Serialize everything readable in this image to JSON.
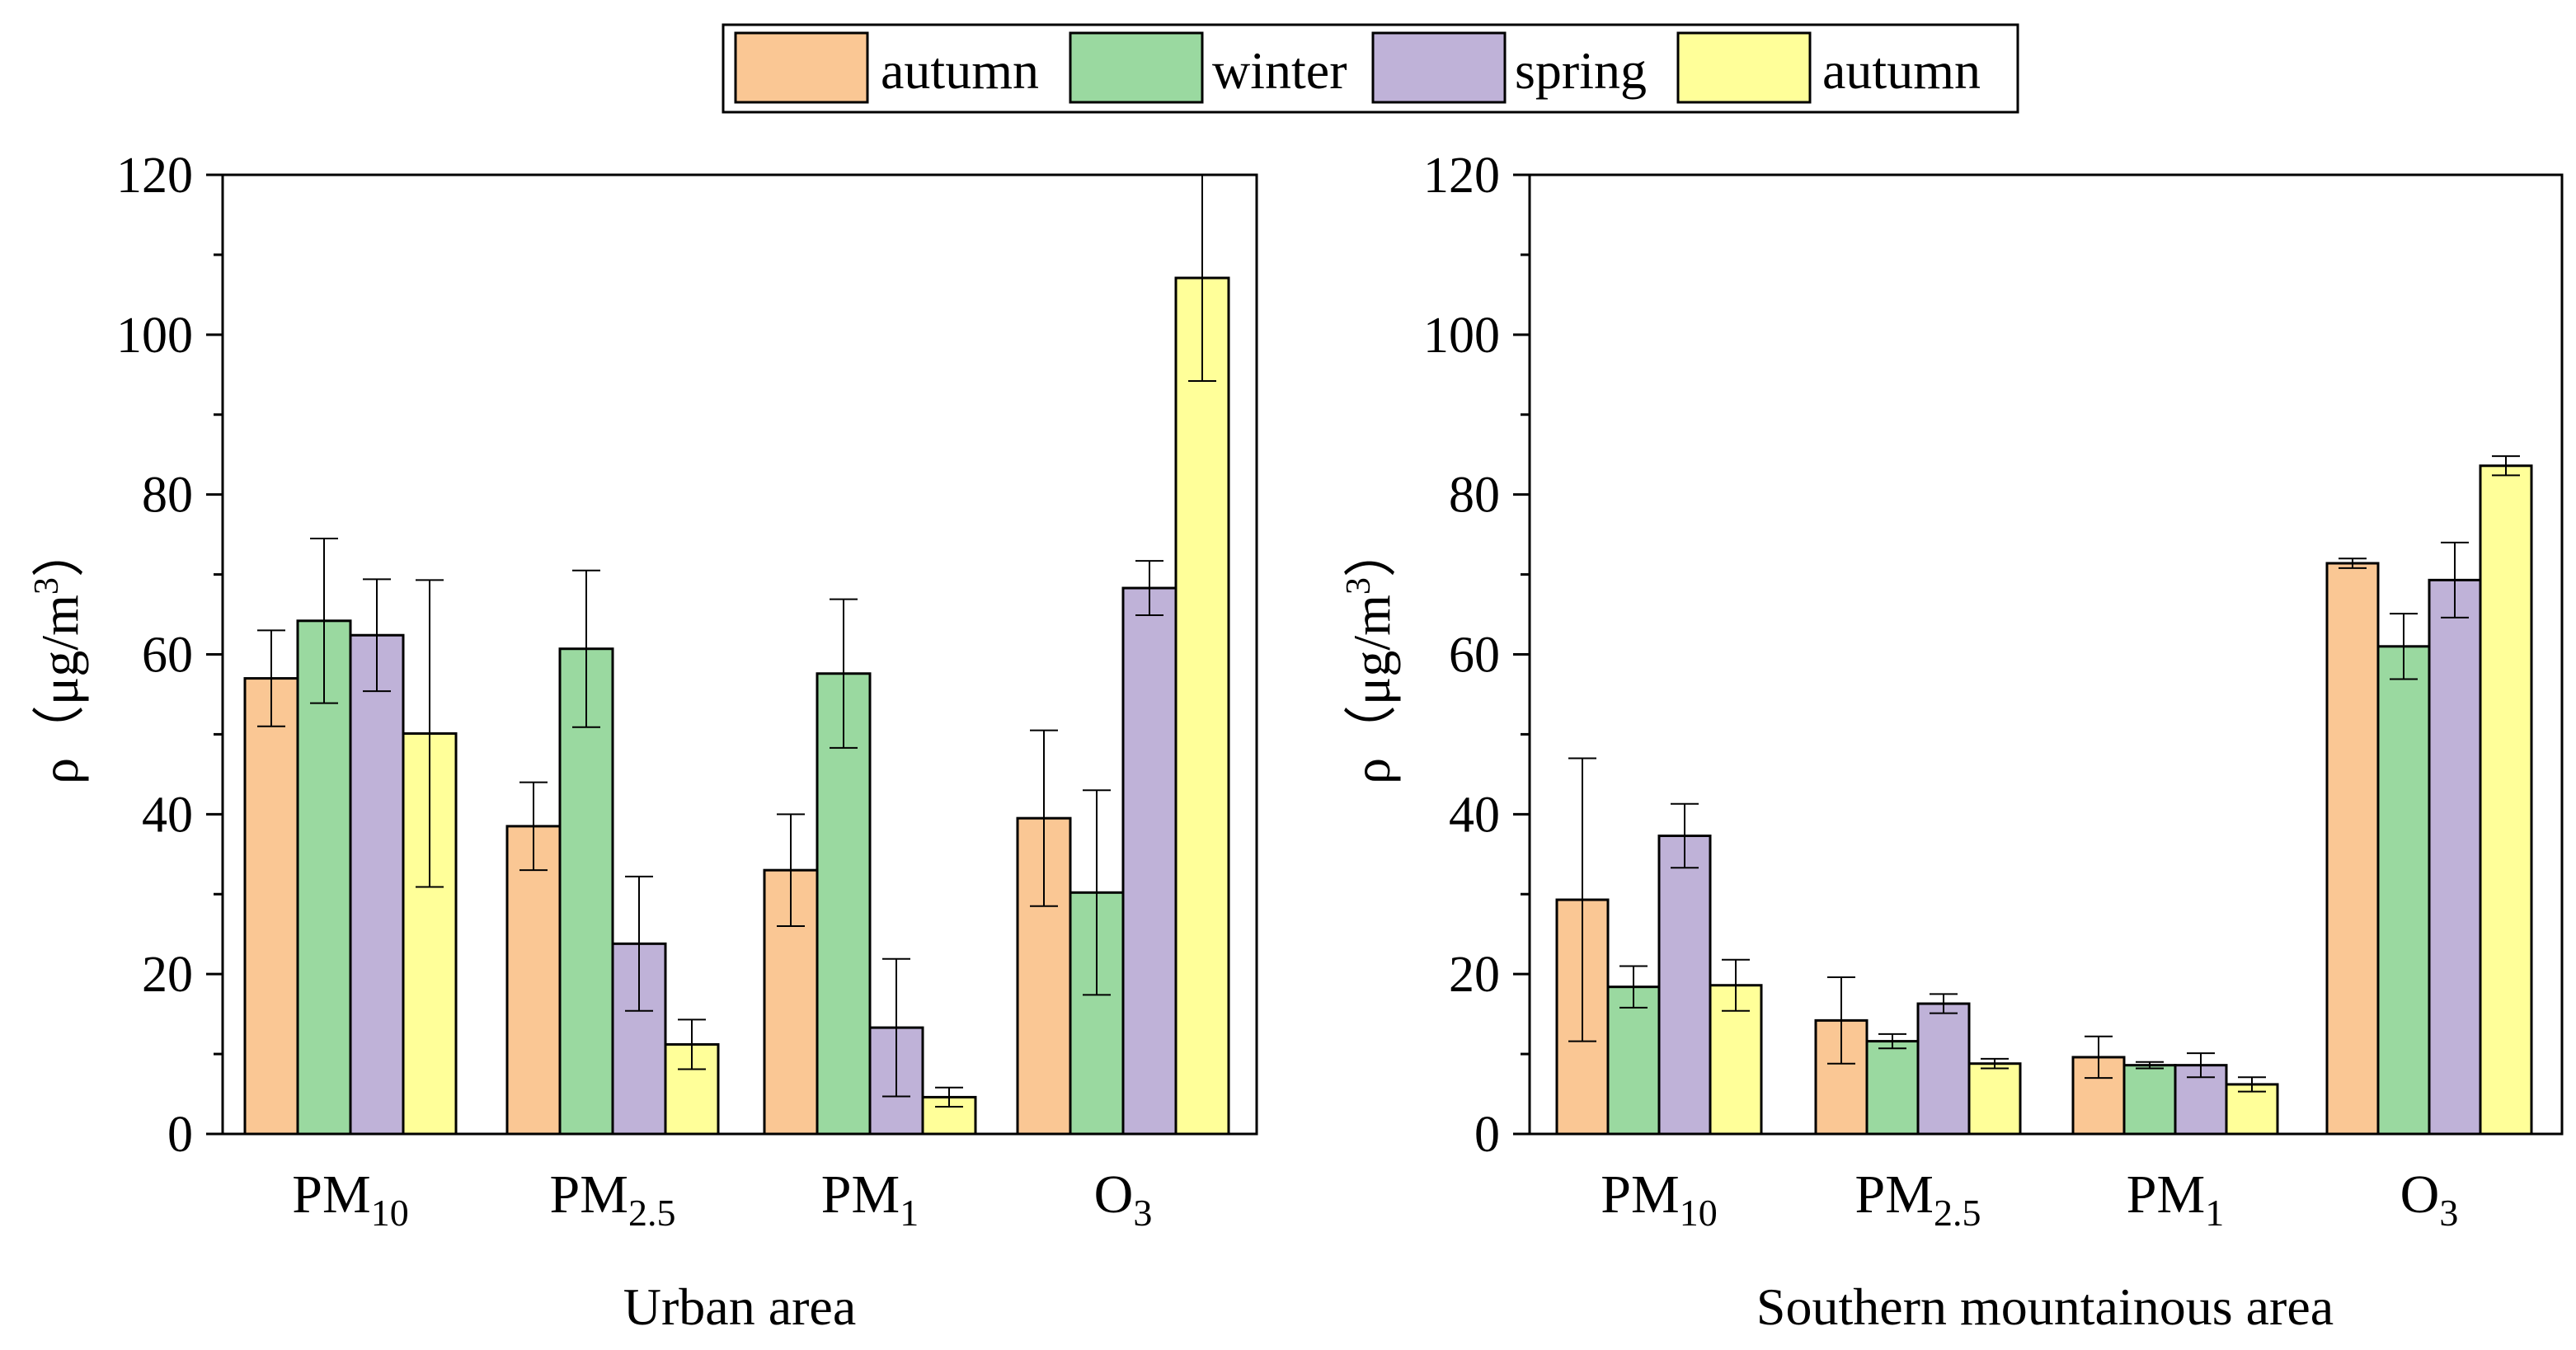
{
  "legend": {
    "entries": [
      {
        "label": "autumn",
        "color": "#FAC794"
      },
      {
        "label": "winter",
        "color": "#9AD9A0"
      },
      {
        "label": "spring",
        "color": "#BFB2D8"
      },
      {
        "label": "autumn",
        "color": "#FFFF99"
      }
    ]
  },
  "chart_data": [
    {
      "type": "bar",
      "title": "Urban area",
      "ylabel": {
        "main": "ρ（μg/m",
        "sup": "3",
        "close": "）"
      },
      "ylim": [
        0,
        120
      ],
      "yticks": [
        "0",
        "20",
        "40",
        "60",
        "80",
        "100",
        "120"
      ],
      "categories": [
        {
          "main": "PM",
          "sub": "10"
        },
        {
          "main": "PM",
          "sub": "2.5"
        },
        {
          "main": "PM",
          "sub": "1"
        },
        {
          "main": "O",
          "sub": "3"
        }
      ],
      "series": [
        {
          "name": "autumn",
          "color": "#FAC794",
          "values": [
            57,
            38.5,
            33,
            39.5
          ],
          "errors": [
            6,
            5.5,
            7,
            11
          ]
        },
        {
          "name": "winter",
          "color": "#9AD9A0",
          "values": [
            64.2,
            60.7,
            57.6,
            30.2
          ],
          "errors": [
            10.3,
            9.8,
            9.3,
            12.8
          ]
        },
        {
          "name": "spring",
          "color": "#BFB2D8",
          "values": [
            62.4,
            23.8,
            13.3,
            68.3
          ],
          "errors": [
            7,
            8.4,
            8.6,
            3.4
          ]
        },
        {
          "name": "autumn",
          "color": "#FFFF99",
          "values": [
            50.1,
            11.2,
            4.6,
            107.1
          ],
          "errors": [
            19.2,
            3.1,
            1.2,
            12.9
          ]
        }
      ]
    },
    {
      "type": "bar",
      "title": "Southern mountainous area",
      "ylabel": {
        "main": "ρ（μg/m",
        "sup": "3",
        "close": "）"
      },
      "ylim": [
        0,
        120
      ],
      "yticks": [
        "0",
        "20",
        "40",
        "60",
        "80",
        "100",
        "120"
      ],
      "categories": [
        {
          "main": "PM",
          "sub": "10"
        },
        {
          "main": "PM",
          "sub": "2.5"
        },
        {
          "main": "PM",
          "sub": "1"
        },
        {
          "main": "O",
          "sub": "3"
        }
      ],
      "series": [
        {
          "name": "autumn",
          "color": "#FAC794",
          "values": [
            29.3,
            14.2,
            9.6,
            71.4
          ],
          "errors": [
            17.7,
            5.4,
            2.6,
            0.6
          ]
        },
        {
          "name": "winter",
          "color": "#9AD9A0",
          "values": [
            18.4,
            11.6,
            8.6,
            61
          ],
          "errors": [
            2.6,
            0.9,
            0.4,
            4.1
          ]
        },
        {
          "name": "spring",
          "color": "#BFB2D8",
          "values": [
            37.3,
            16.3,
            8.6,
            69.3
          ],
          "errors": [
            4,
            1.2,
            1.5,
            4.7
          ]
        },
        {
          "name": "autumn",
          "color": "#FFFF99",
          "values": [
            18.6,
            8.8,
            6.2,
            83.6
          ],
          "errors": [
            3.2,
            0.6,
            0.9,
            1.2
          ]
        }
      ]
    }
  ]
}
